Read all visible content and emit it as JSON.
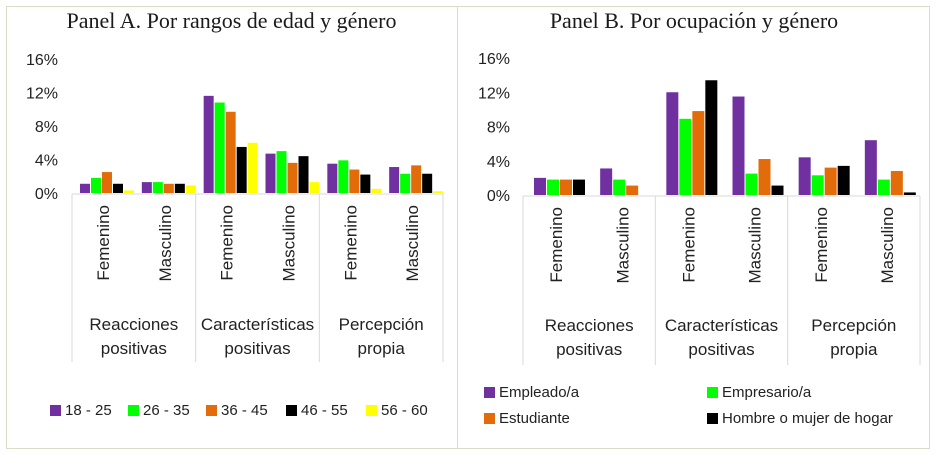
{
  "chart_data": [
    {
      "type": "bar",
      "title": "Panel A. Por rangos de edad y género",
      "xlabel": "",
      "ylabel": "",
      "ylim": [
        0,
        16
      ],
      "yticks": [
        "0%",
        "4%",
        "8%",
        "12%",
        "16%"
      ],
      "ytick_values": [
        0,
        4,
        8,
        12,
        16
      ],
      "grid": false,
      "legend_position": "bottom",
      "groups": [
        {
          "label": "Reacciones positivas",
          "lines": [
            "Reacciones",
            "positivas"
          ]
        },
        {
          "label": "Características positivas",
          "lines": [
            "Características",
            "positivas"
          ]
        },
        {
          "label": "Percepción propia",
          "lines": [
            "Percepción",
            "propia"
          ]
        }
      ],
      "categories": [
        "Femenino",
        "Masculino",
        "Femenino",
        "Masculino",
        "Femenino",
        "Masculino"
      ],
      "series": [
        {
          "name": "18 - 25",
          "color": "#7030a0",
          "values": [
            1.1,
            1.3,
            11.6,
            4.7,
            3.5,
            3.1
          ]
        },
        {
          "name": "26 - 35",
          "color": "#00ff00",
          "values": [
            1.8,
            1.3,
            10.8,
            5.0,
            3.9,
            2.3
          ]
        },
        {
          "name": "36 - 45",
          "color": "#e36c0a",
          "values": [
            2.5,
            1.1,
            9.7,
            3.6,
            2.8,
            3.3
          ]
        },
        {
          "name": "46 - 55",
          "color": "#000000",
          "values": [
            1.1,
            1.1,
            5.5,
            4.4,
            2.2,
            2.3
          ]
        },
        {
          "name": "56 - 60",
          "color": "#ffff00",
          "values": [
            0.3,
            0.9,
            6.0,
            1.3,
            0.5,
            0.2
          ]
        }
      ]
    },
    {
      "type": "bar",
      "title": "Panel B. Por ocupación y género",
      "xlabel": "",
      "ylabel": "",
      "ylim": [
        0,
        16
      ],
      "yticks": [
        "0%",
        "4%",
        "8%",
        "12%",
        "16%"
      ],
      "ytick_values": [
        0,
        4,
        8,
        12,
        16
      ],
      "grid": false,
      "legend_position": "bottom",
      "groups": [
        {
          "label": "Reacciones positivas",
          "lines": [
            "Reacciones",
            "positivas"
          ]
        },
        {
          "label": "Características positivas",
          "lines": [
            "Características",
            "positivas"
          ]
        },
        {
          "label": "Percepción propia",
          "lines": [
            "Percepción",
            "propia"
          ]
        }
      ],
      "categories": [
        "Femenino",
        "Masculino",
        "Femenino",
        "Masculino",
        "Femenino",
        "Masculino"
      ],
      "series": [
        {
          "name": "Empleado/a",
          "color": "#7030a0",
          "values": [
            2.0,
            3.1,
            12.0,
            11.5,
            4.4,
            6.4
          ]
        },
        {
          "name": "Empresario/a",
          "color": "#00ff00",
          "values": [
            1.8,
            1.8,
            8.9,
            2.5,
            2.3,
            1.8
          ]
        },
        {
          "name": "Estudiante",
          "color": "#e36c0a",
          "values": [
            1.8,
            1.1,
            9.8,
            4.2,
            3.2,
            2.8
          ]
        },
        {
          "name": "Hombre o mujer de hogar",
          "color": "#000000",
          "values": [
            1.8,
            0,
            13.4,
            1.1,
            3.4,
            0.3
          ]
        }
      ]
    }
  ]
}
